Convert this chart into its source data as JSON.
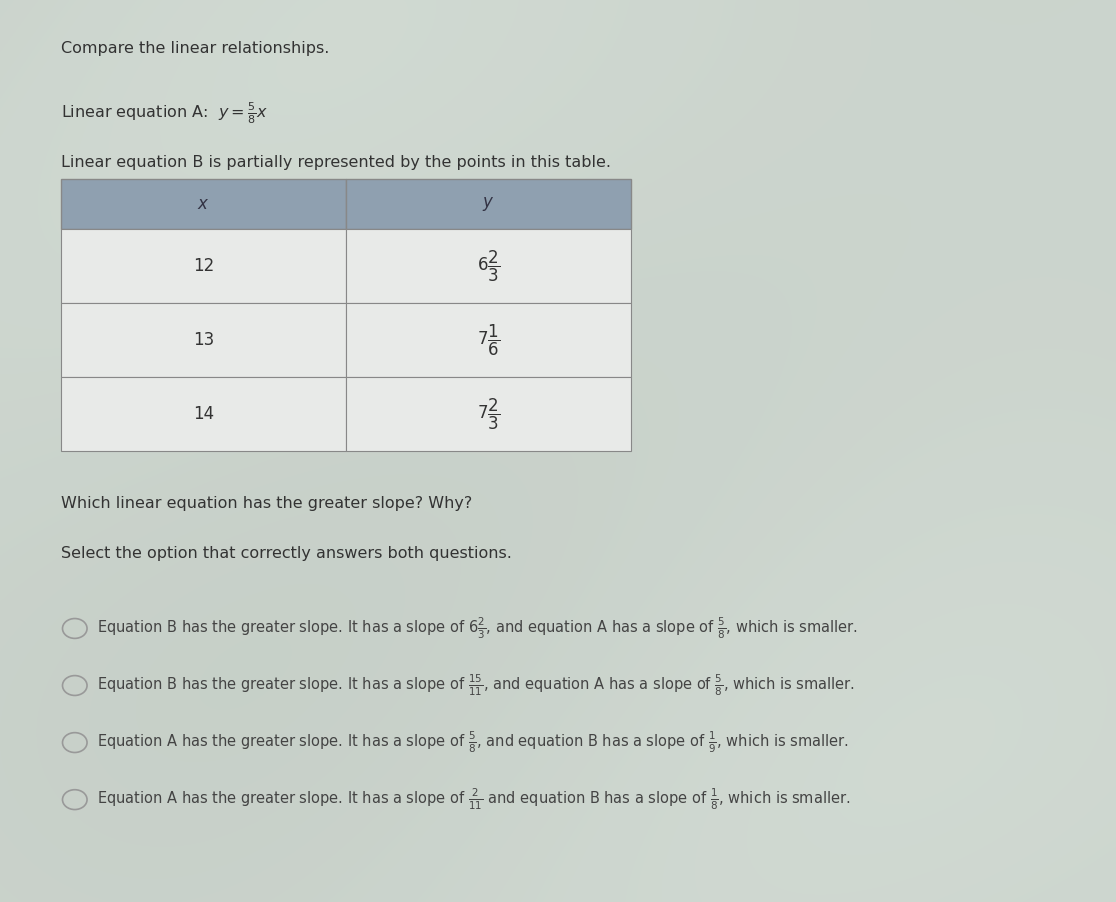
{
  "title_text": "Compare the linear relationships.",
  "eq_a_label": "Linear equation A: ",
  "eq_b_text": "Linear equation B is partially represented by the points in this table.",
  "table_x_values": [
    "12",
    "13",
    "14"
  ],
  "table_y_values": [
    "$6\\frac{2}{3}$",
    "$7\\frac{1}{6}$",
    "$7\\frac{2}{3}$"
  ],
  "question1": "Which linear equation has the greater slope? Why?",
  "question2": "Select the option that correctly answers both questions.",
  "options": [
    [
      "Equation B has the greater slope. It has a slope of ",
      "$6\\frac{2}{3}$",
      ", and equation A has a slope of ",
      "$\\frac{5}{8}$",
      ", which is smaller."
    ],
    [
      "Equation B has the greater slope. It has a slope of ",
      "$\\frac{15}{11}$",
      ", and equation A has a slope of ",
      "$\\frac{5}{8}$",
      ", which is smaller."
    ],
    [
      "Equation A has the greater slope. It has a slope of ",
      "$\\frac{5}{8}$",
      ", and equation B has a slope of ",
      "$\\frac{1}{9}$",
      ", which is smaller."
    ],
    [
      "Equation A has the greater slope. It has a slope of ",
      "$\\frac{2}{11}$",
      " and equation B has a slope of ",
      "$\\frac{1}{8}$",
      ", which is smaller."
    ]
  ],
  "bg_color": "#c8cfc8",
  "table_header_bg": "#8fa0b0",
  "table_row_bg_light": "#e8eae8",
  "table_row_bg_dark": "#d8d8cc",
  "table_border_color": "#888888",
  "text_color": "#333333",
  "option_text_color": "#444444",
  "radio_color": "#999999"
}
